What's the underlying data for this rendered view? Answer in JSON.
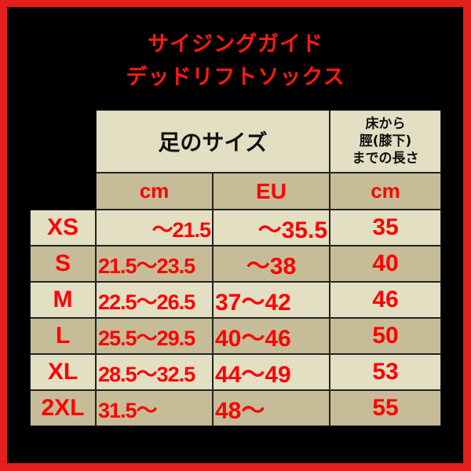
{
  "title": {
    "line1": "サイジングガイド",
    "line2": "デッドリフトソックス"
  },
  "header": {
    "foot_size": "足のサイズ",
    "leg_length_lines": [
      "床から",
      "脛(膝下)",
      "までの長さ"
    ],
    "units": [
      "cm",
      "EU",
      "cm"
    ]
  },
  "rows": [
    {
      "size": "XS",
      "foot_cm": "～21.5",
      "foot_eu": "～35.5",
      "length_cm": "35"
    },
    {
      "size": "S",
      "foot_cm": "21.5～23.5",
      "foot_eu": "～38",
      "length_cm": "40"
    },
    {
      "size": "M",
      "foot_cm": "22.5～26.5",
      "foot_eu": "37～42",
      "length_cm": "46"
    },
    {
      "size": "L",
      "foot_cm": "25.5～29.5",
      "foot_eu": "40～46",
      "length_cm": "50"
    },
    {
      "size": "XL",
      "foot_cm": "28.5～32.5",
      "foot_eu": "44～49",
      "length_cm": "53"
    },
    {
      "size": "2XL",
      "foot_cm": "31.5～",
      "foot_eu": "48～",
      "length_cm": "55"
    }
  ],
  "colors": {
    "border": "#e31e1b",
    "text_red": "#ff0000",
    "light_cell": "#e2dfc3",
    "dark_cell": "#c6bd98"
  }
}
